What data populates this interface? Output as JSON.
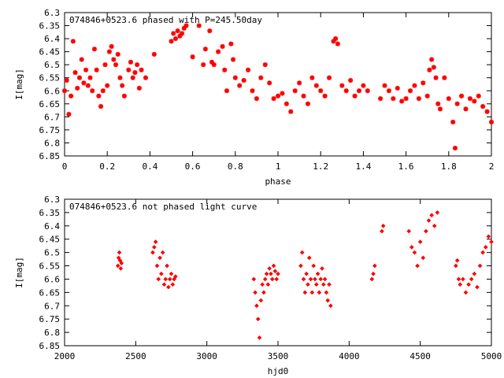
{
  "chart_data": [
    {
      "type": "scatter",
      "title": "074846+0523.6 phased with P=245.50day",
      "xlabel": "phase",
      "ylabel": "I[mag]",
      "xlim": [
        0,
        2
      ],
      "ylim": [
        6.3,
        6.85
      ],
      "y_inverted": true,
      "grid": false,
      "marker": "asterisk",
      "color": "#ff0000",
      "xticks": [
        0,
        0.2,
        0.4,
        0.6,
        0.8,
        1,
        1.2,
        1.4,
        1.6,
        1.8,
        2
      ],
      "yticks": [
        6.3,
        6.35,
        6.4,
        6.45,
        6.5,
        6.55,
        6.6,
        6.65,
        6.7,
        6.75,
        6.8,
        6.85
      ],
      "series": [
        {
          "x": [
            0.0,
            0.01,
            0.02,
            0.03,
            0.04,
            0.05,
            0.06,
            0.07,
            0.08,
            0.09,
            0.1,
            0.11,
            0.12,
            0.13,
            0.14,
            0.15,
            0.16,
            0.17,
            0.18,
            0.19,
            0.2,
            0.21,
            0.22,
            0.23,
            0.24,
            0.25,
            0.26,
            0.27,
            0.28,
            0.3,
            0.31,
            0.32,
            0.33,
            0.34,
            0.35,
            0.36,
            0.38,
            0.42,
            0.5,
            0.51,
            0.52,
            0.53,
            0.54,
            0.55,
            0.56,
            0.57,
            0.6,
            0.63,
            0.65,
            0.66,
            0.68,
            0.69,
            0.7,
            0.72,
            0.74,
            0.75,
            0.76,
            0.78,
            0.79,
            0.8,
            0.82,
            0.84,
            0.86,
            0.88,
            0.9,
            0.92,
            0.94,
            0.96,
            0.98,
            1.0,
            1.02,
            1.04,
            1.06,
            1.08,
            1.1,
            1.12,
            1.14,
            1.16,
            1.18,
            1.2,
            1.22,
            1.24,
            1.26,
            1.27,
            1.28,
            1.3,
            1.32,
            1.34,
            1.36,
            1.38,
            1.4,
            1.42,
            1.48,
            1.5,
            1.52,
            1.54,
            1.56,
            1.58,
            1.6,
            1.62,
            1.64,
            1.66,
            1.68,
            1.7,
            1.71,
            1.72,
            1.73,
            1.74,
            1.75,
            1.76,
            1.78,
            1.8,
            1.82,
            1.83,
            1.84,
            1.86,
            1.88,
            1.9,
            1.92,
            1.94,
            1.96,
            1.98,
            2.0
          ],
          "y": [
            6.6,
            6.56,
            6.69,
            6.62,
            6.41,
            6.53,
            6.59,
            6.55,
            6.48,
            6.57,
            6.52,
            6.58,
            6.55,
            6.6,
            6.44,
            6.52,
            6.62,
            6.66,
            6.6,
            6.5,
            6.58,
            6.45,
            6.43,
            6.48,
            6.5,
            6.46,
            6.55,
            6.58,
            6.62,
            6.52,
            6.49,
            6.55,
            6.53,
            6.5,
            6.59,
            6.52,
            6.55,
            6.46,
            6.41,
            6.38,
            6.4,
            6.37,
            6.39,
            6.38,
            6.36,
            6.35,
            6.47,
            6.35,
            6.5,
            6.44,
            6.37,
            6.49,
            6.5,
            6.45,
            6.43,
            6.52,
            6.6,
            6.42,
            6.48,
            6.55,
            6.58,
            6.56,
            6.52,
            6.6,
            6.63,
            6.55,
            6.5,
            6.57,
            6.63,
            6.62,
            6.61,
            6.65,
            6.68,
            6.6,
            6.57,
            6.62,
            6.65,
            6.55,
            6.58,
            6.6,
            6.62,
            6.55,
            6.41,
            6.4,
            6.42,
            6.58,
            6.6,
            6.56,
            6.62,
            6.6,
            6.58,
            6.6,
            6.63,
            6.58,
            6.6,
            6.63,
            6.59,
            6.64,
            6.63,
            6.6,
            6.58,
            6.63,
            6.57,
            6.62,
            6.52,
            6.48,
            6.51,
            6.55,
            6.65,
            6.67,
            6.55,
            6.63,
            6.72,
            6.82,
            6.65,
            6.62,
            6.67,
            6.63,
            6.64,
            6.62,
            6.66,
            6.68,
            6.72
          ]
        }
      ]
    },
    {
      "type": "scatter",
      "title": "074846+0523.6 not phased light curve",
      "xlabel": "hjd0",
      "ylabel": "I[mag]",
      "xlim": [
        2000,
        5000
      ],
      "ylim": [
        6.3,
        6.85
      ],
      "y_inverted": true,
      "grid": false,
      "marker": "diamond",
      "color": "#ff0000",
      "xticks": [
        2000,
        2500,
        3000,
        3500,
        4000,
        4500,
        5000
      ],
      "yticks": [
        6.3,
        6.35,
        6.4,
        6.45,
        6.5,
        6.55,
        6.6,
        6.65,
        6.7,
        6.75,
        6.8,
        6.85
      ],
      "series": [
        {
          "x": [
            2375,
            2380,
            2385,
            2390,
            2395,
            2400,
            2620,
            2630,
            2640,
            2650,
            2660,
            2670,
            2680,
            2690,
            2700,
            2710,
            2720,
            2730,
            2740,
            2750,
            2760,
            2770,
            2780,
            3330,
            3340,
            3350,
            3360,
            3370,
            3380,
            3390,
            3400,
            3410,
            3420,
            3430,
            3440,
            3450,
            3460,
            3470,
            3480,
            3490,
            3500,
            3660,
            3670,
            3680,
            3690,
            3700,
            3710,
            3720,
            3730,
            3740,
            3750,
            3760,
            3770,
            3780,
            3790,
            3800,
            3810,
            3820,
            3830,
            3840,
            3850,
            3860,
            3870,
            4160,
            4170,
            4180,
            4230,
            4240,
            4420,
            4440,
            4460,
            4480,
            4500,
            4520,
            4540,
            4560,
            4580,
            4600,
            4620,
            4750,
            4760,
            4770,
            4780,
            4800,
            4820,
            4840,
            4860,
            4880,
            4900,
            4920,
            4940,
            4960,
            4980,
            5000
          ],
          "y": [
            6.55,
            6.52,
            6.5,
            6.53,
            6.56,
            6.54,
            6.5,
            6.48,
            6.46,
            6.55,
            6.6,
            6.52,
            6.58,
            6.5,
            6.62,
            6.6,
            6.55,
            6.63,
            6.6,
            6.58,
            6.62,
            6.6,
            6.59,
            6.6,
            6.65,
            6.7,
            6.75,
            6.82,
            6.68,
            6.62,
            6.65,
            6.6,
            6.58,
            6.62,
            6.56,
            6.58,
            6.6,
            6.55,
            6.57,
            6.6,
            6.58,
            6.55,
            6.5,
            6.6,
            6.65,
            6.58,
            6.62,
            6.52,
            6.6,
            6.65,
            6.55,
            6.6,
            6.62,
            6.58,
            6.65,
            6.6,
            6.56,
            6.62,
            6.6,
            6.65,
            6.68,
            6.62,
            6.7,
            6.6,
            6.58,
            6.55,
            6.42,
            6.4,
            6.42,
            6.48,
            6.5,
            6.55,
            6.46,
            6.52,
            6.42,
            6.38,
            6.36,
            6.4,
            6.35,
            6.55,
            6.53,
            6.6,
            6.62,
            6.6,
            6.65,
            6.62,
            6.6,
            6.58,
            6.63,
            6.55,
            6.5,
            6.48,
            6.44,
            6.46
          ]
        }
      ]
    }
  ]
}
